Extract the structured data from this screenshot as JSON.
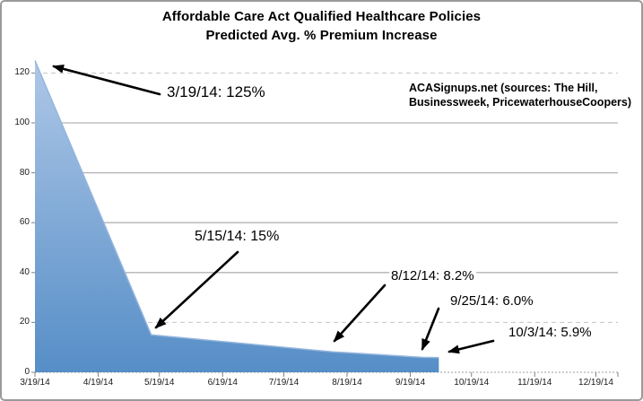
{
  "chart_data": {
    "type": "area",
    "title": "Affordable Care Act Qualified Healthcare Policies",
    "subtitle": "Predicted Avg. % Premium Increase",
    "source_line1": "ACASignups.net (sources: The Hill,",
    "source_line2": "Businessweek, PricewaterhouseCoopers)",
    "x_tick_labels": [
      "3/19/14",
      "4/19/14",
      "5/19/14",
      "6/19/14",
      "7/19/14",
      "8/19/14",
      "9/19/14",
      "10/19/14",
      "11/19/14",
      "12/19/14"
    ],
    "y_ticks": [
      0,
      20,
      40,
      60,
      80,
      100,
      120
    ],
    "ylim": [
      0,
      126
    ],
    "grid": "on",
    "legend": "none",
    "points": [
      {
        "date": "3/19/14",
        "value": 125,
        "label": "3/19/14: 125%"
      },
      {
        "date": "5/15/14",
        "value": 15,
        "label": "5/15/14: 15%"
      },
      {
        "date": "8/12/14",
        "value": 8.2,
        "label": "8/12/14: 8.2%"
      },
      {
        "date": "9/25/14",
        "value": 6.0,
        "label": "9/25/14: 6.0%"
      },
      {
        "date": "10/3/14",
        "value": 5.9,
        "label": "10/3/14: 5.9%"
      }
    ],
    "colors": {
      "area_top": "#aec7e7",
      "area_bottom": "#568ec7",
      "area_edge": "#93b5dd",
      "gridline_solid": "#b3b3b3",
      "gridline_dashed": "#c4c4c4",
      "baseline": "#9e9e9e",
      "tick": "#808080",
      "arrow": "#000000"
    }
  }
}
